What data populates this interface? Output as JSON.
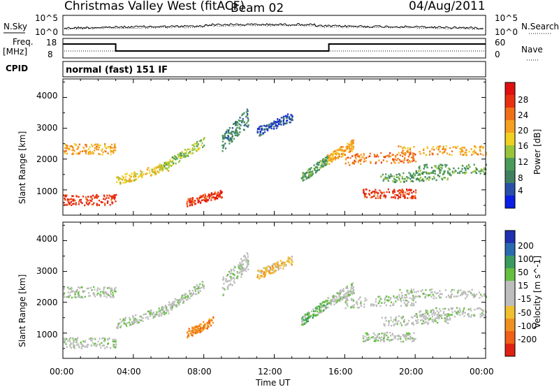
{
  "header": {
    "station": "Christmas Valley West (fitACF)",
    "beam": "Beam 02",
    "date": "04/Aug/2011"
  },
  "noise_panel": {
    "left_label": "N.Sky",
    "right_label": "N.Search",
    "left_ticks": [
      "10^5",
      "10^0"
    ],
    "right_ticks": [
      "10^5",
      "10^0"
    ]
  },
  "freq_panel": {
    "left_label_line1": "Freq.",
    "left_label_line2": "[MHz]",
    "right_label": "Nave",
    "left_ticks": [
      "18",
      "8"
    ],
    "right_ticks": [
      "60",
      "0"
    ],
    "freq_steps": [
      {
        "from_hour": 0,
        "to_hour": 3.0,
        "level": "high"
      },
      {
        "from_hour": 3.0,
        "to_hour": 15.1,
        "level": "low"
      },
      {
        "from_hour": 15.1,
        "to_hour": 24,
        "level": "high"
      }
    ]
  },
  "cpid": {
    "label": "CPID",
    "text": "normal (fast) 151 IF"
  },
  "colors": {
    "power_scale": [
      "#0a1ee6",
      "#2a4fa8",
      "#3f8060",
      "#4c9a5a",
      "#9ac43a",
      "#f0d020",
      "#f5a020",
      "#f07018",
      "#e83010",
      "#e01010"
    ],
    "velocity_scale": [
      "#2030b0",
      "#2a6ab0",
      "#3a9a60",
      "#66c040",
      "#bdbdbd",
      "#bdbdbd",
      "#f0c030",
      "#f09020",
      "#f06018",
      "#e02010"
    ]
  },
  "chart_data": [
    {
      "type": "heatmap",
      "name": "power_panel",
      "xlabel": "",
      "ylabel": "Slant Range [km]",
      "xlim": [
        0,
        24
      ],
      "ylim": [
        180,
        4600
      ],
      "yticks": [
        "1000",
        "2000",
        "3000",
        "4000"
      ],
      "colorbar_label": "Power [dB]",
      "colorbar_ticks": [
        "4",
        "8",
        "12",
        "16",
        "20",
        "24",
        "28"
      ],
      "colorbar_range": [
        0,
        30
      ]
    },
    {
      "type": "heatmap",
      "name": "velocity_panel",
      "xlabel": "Time UT",
      "ylabel": "Slant Range [km]",
      "xlim": [
        0,
        24
      ],
      "ylim": [
        180,
        4600
      ],
      "xticks": [
        "00:00",
        "04:00",
        "08:00",
        "12:00",
        "16:00",
        "20:00",
        "00:00"
      ],
      "yticks": [
        "1000",
        "2000",
        "3000",
        "4000"
      ],
      "colorbar_label": "Velocity [m s^-1]",
      "colorbar_ticks": [
        "200",
        "100",
        "50",
        "15",
        "-15",
        "-50",
        "-100",
        "-200"
      ]
    }
  ]
}
